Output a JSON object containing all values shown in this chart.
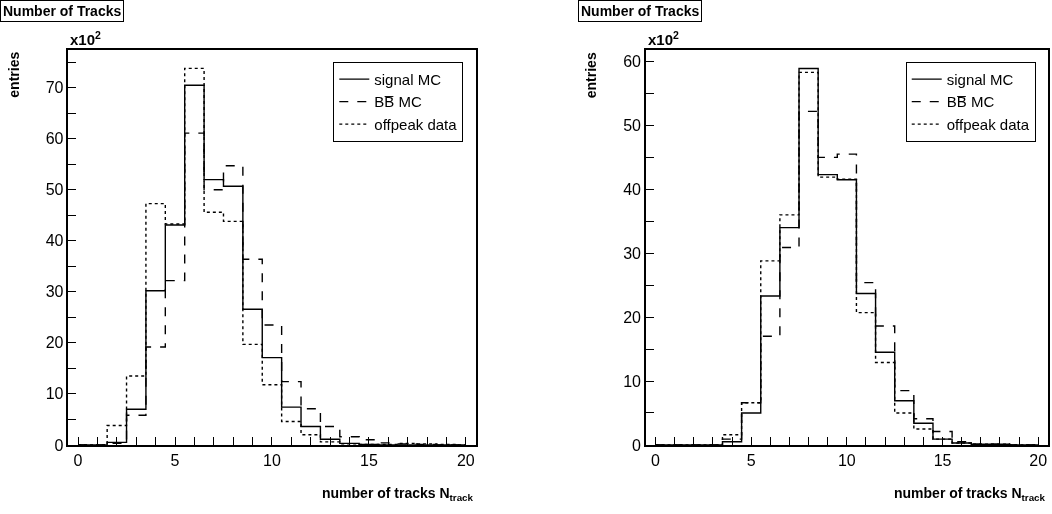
{
  "chart_data": [
    {
      "type": "step",
      "title": "Number of Tracks",
      "xlabel": "number of tracks N$_{track}$",
      "ylabel": "entries",
      "annotations": [
        "x10$^{2}$"
      ],
      "x": [
        0,
        1,
        2,
        3,
        4,
        5,
        6,
        7,
        8,
        9,
        10,
        11,
        12,
        13,
        14,
        15,
        16,
        17,
        18,
        19,
        20
      ],
      "series": [
        {
          "name": "signal MC",
          "color": "#000000",
          "line_style": "solid",
          "values": [
            0,
            0,
            0.5,
            7.0,
            30.2,
            43.1,
            70.5,
            52.0,
            50.7,
            26.6,
            17.1,
            7.4,
            3.6,
            1.1,
            0.3,
            0.1,
            0,
            0,
            0,
            0,
            0
          ]
        },
        {
          "name": "BB̅ MC",
          "color": "#000000",
          "line_style": "dashed",
          "values": [
            0,
            0,
            0.3,
            5.8,
            19.2,
            32.2,
            61.1,
            50.0,
            54.7,
            36.4,
            23.5,
            12.4,
            7.1,
            3.6,
            1.6,
            1.0,
            0.4,
            0.2,
            0.1,
            0,
            0
          ]
        },
        {
          "name": "offpeak data",
          "color": "#000000",
          "line_style": "dotted",
          "values": [
            0,
            0,
            3.8,
            13.5,
            47.3,
            43.3,
            73.8,
            45.6,
            43.8,
            19.7,
            11.8,
            4.6,
            2.0,
            0.6,
            0.2,
            0.1,
            0.1,
            0.3,
            0.2,
            0.1,
            0
          ]
        }
      ],
      "xlim": [
        -0.5,
        20.5
      ],
      "ylim": [
        0,
        77.4
      ],
      "xticks": [
        0,
        {
          "value": 1,
          "label": null
        },
        {
          "value": 2,
          "label": null
        },
        {
          "value": 3,
          "label": null
        },
        {
          "value": 4,
          "label": null
        },
        5,
        {
          "value": 6,
          "label": null
        },
        {
          "value": 7,
          "label": null
        },
        {
          "value": 8,
          "label": null
        },
        {
          "value": 9,
          "label": null
        },
        10,
        {
          "value": 11,
          "label": null
        },
        {
          "value": 12,
          "label": null
        },
        {
          "value": 13,
          "label": null
        },
        {
          "value": 14,
          "label": null
        },
        15,
        {
          "value": 16,
          "label": null
        },
        {
          "value": 17,
          "label": null
        },
        {
          "value": 18,
          "label": null
        },
        {
          "value": 19,
          "label": null
        },
        20
      ],
      "yticks": [
        0,
        {
          "value": 5,
          "label": null
        },
        10,
        {
          "value": 15,
          "label": null
        },
        20,
        {
          "value": 25,
          "label": null
        },
        30,
        {
          "value": 35,
          "label": null
        },
        40,
        {
          "value": 45,
          "label": null
        },
        50,
        {
          "value": 55,
          "label": null
        },
        60,
        {
          "value": 65,
          "label": null
        },
        70,
        {
          "value": 75,
          "label": null
        }
      ],
      "legend": "top right"
    },
    {
      "type": "step",
      "title": "Number of Tracks",
      "xlabel": "number of tracks N$_{track}$",
      "ylabel": "entries",
      "annotations": [
        "x10$^{2}$"
      ],
      "x": [
        0,
        1,
        2,
        3,
        4,
        5,
        6,
        7,
        8,
        9,
        10,
        11,
        12,
        13,
        14,
        15,
        16,
        17,
        18,
        19,
        20
      ],
      "series": [
        {
          "name": "signal MC",
          "color": "#000000",
          "line_style": "solid",
          "values": [
            0,
            0,
            0,
            0,
            0.5,
            5.0,
            23.3,
            34.0,
            58.9,
            42.3,
            41.5,
            23.7,
            14.5,
            6.9,
            3.4,
            0.9,
            0.3,
            0.1,
            0.1,
            0,
            0
          ]
        },
        {
          "name": "BB̅ MC",
          "color": "#000000",
          "line_style": "dashed",
          "values": [
            0,
            0,
            0,
            0,
            0.9,
            6.6,
            17.0,
            30.9,
            52.2,
            45.0,
            45.5,
            25.4,
            18.6,
            8.5,
            4.1,
            2.1,
            0.5,
            0.1,
            0.1,
            0,
            0
          ]
        },
        {
          "name": "offpeak data",
          "color": "#000000",
          "line_style": "dotted",
          "values": [
            0,
            0,
            0,
            0,
            1.6,
            6.6,
            28.8,
            36.0,
            58.3,
            41.9,
            41.6,
            20.7,
            12.9,
            5.0,
            2.5,
            0.9,
            0.3,
            0.1,
            0.1,
            0,
            0
          ]
        }
      ],
      "xlim": [
        -0.5,
        20.5
      ],
      "ylim": [
        0,
        61.8
      ],
      "xticks": [
        0,
        {
          "value": 1,
          "label": null
        },
        {
          "value": 2,
          "label": null
        },
        {
          "value": 3,
          "label": null
        },
        {
          "value": 4,
          "label": null
        },
        5,
        {
          "value": 6,
          "label": null
        },
        {
          "value": 7,
          "label": null
        },
        {
          "value": 8,
          "label": null
        },
        {
          "value": 9,
          "label": null
        },
        10,
        {
          "value": 11,
          "label": null
        },
        {
          "value": 12,
          "label": null
        },
        {
          "value": 13,
          "label": null
        },
        {
          "value": 14,
          "label": null
        },
        15,
        {
          "value": 16,
          "label": null
        },
        {
          "value": 17,
          "label": null
        },
        {
          "value": 18,
          "label": null
        },
        {
          "value": 19,
          "label": null
        },
        20
      ],
      "yticks": [
        0,
        {
          "value": 5,
          "label": null
        },
        10,
        {
          "value": 15,
          "label": null
        },
        20,
        {
          "value": 25,
          "label": null
        },
        30,
        {
          "value": 35,
          "label": null
        },
        40,
        {
          "value": 45,
          "label": null
        },
        50,
        {
          "value": 55,
          "label": null
        },
        60
      ],
      "legend": "top right"
    }
  ]
}
